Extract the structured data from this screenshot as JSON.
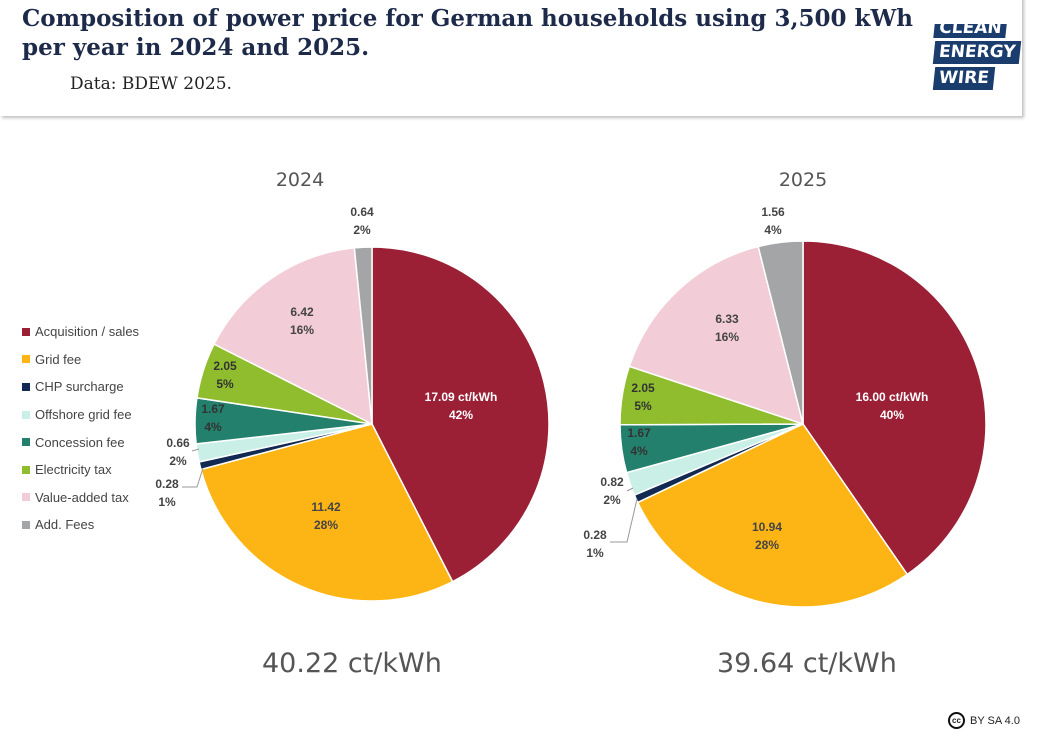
{
  "header": {
    "title": "Composition of power price for German households using 3,500 kWh per year in 2024 and 2025.",
    "subtitle": "Data: BDEW 2025."
  },
  "logo": {
    "words": [
      "CLEAN",
      "ENERGY",
      "WIRE"
    ]
  },
  "license": {
    "text": "BY SA 4.0",
    "icon": "cc-icon"
  },
  "colors": {
    "acquisition": "#9b1f35",
    "grid": "#fdb515",
    "chp": "#122a52",
    "offshore": "#c9efe7",
    "concession": "#23806d",
    "electricity_tax": "#8fbd2d",
    "vat": "#f2ccd6",
    "add_fees": "#a3a5a7"
  },
  "chart_data": {
    "type": "pie",
    "unit": "ct/kWh",
    "legend": {
      "placement": "left",
      "entries": [
        "Acquisition / sales",
        "Grid fee",
        "CHP surcharge",
        "Offshore grid fee",
        "Concession fee",
        "Electricity tax",
        "Value-added tax",
        "Add. Fees"
      ]
    },
    "charts": [
      {
        "title": "2024",
        "total_label": "40.22 ct/kWh",
        "values": [
          17.09,
          11.42,
          0.28,
          0.66,
          1.67,
          2.05,
          6.42,
          0.64
        ],
        "value_labels": [
          "17.09 ct/kWh",
          "11.42",
          "0.28",
          "0.66",
          "1.67",
          "2.05",
          "6.42",
          "0.64"
        ],
        "percent_labels": [
          "42%",
          "28%",
          "1%",
          "2%",
          "4%",
          "5%",
          "16%",
          "2%"
        ]
      },
      {
        "title": "2025",
        "total_label": "39.64 ct/kWh",
        "values": [
          16.0,
          10.94,
          0.28,
          0.82,
          1.67,
          2.05,
          6.33,
          1.56
        ],
        "value_labels": [
          "16.00 ct/kWh",
          "10.94",
          "0.28",
          "0.82",
          "1.67",
          "2.05",
          "6.33",
          "1.56"
        ],
        "percent_labels": [
          "40%",
          "28%",
          "1%",
          "2%",
          "4%",
          "5%",
          "16%",
          "4%"
        ]
      }
    ]
  }
}
